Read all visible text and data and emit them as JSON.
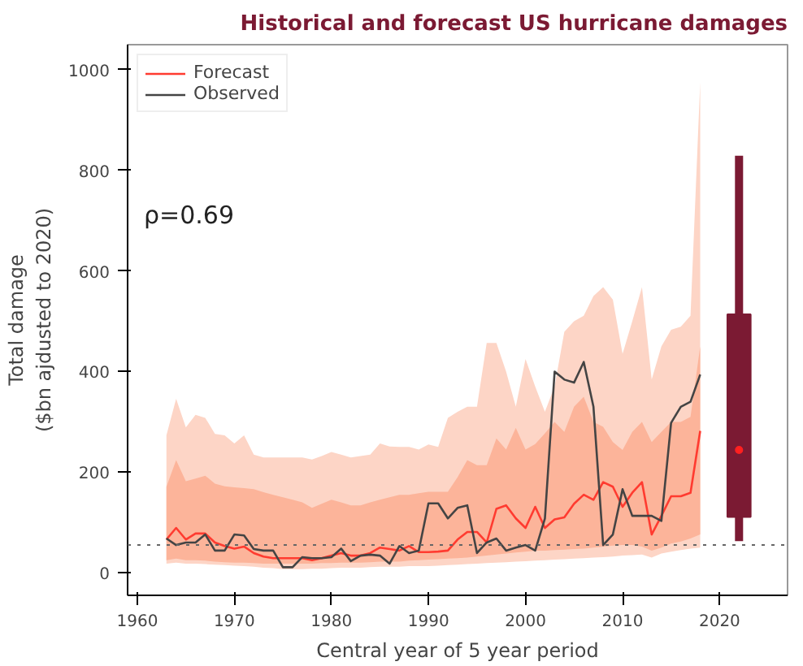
{
  "chart_data": {
    "type": "line",
    "title": "Historical and forecast US hurricane damages",
    "xlabel": "Central year of 5 year period",
    "ylabel": "Total damage\n($bn ajdusted to 2020)",
    "xlim": [
      1959,
      2027
    ],
    "ylim": [
      -45,
      1050
    ],
    "xticks": [
      1960,
      1970,
      1980,
      1990,
      2000,
      2010,
      2020
    ],
    "yticks": [
      0,
      200,
      400,
      600,
      800,
      1000
    ],
    "x": [
      1963,
      1964,
      1965,
      1966,
      1967,
      1968,
      1969,
      1970,
      1971,
      1972,
      1973,
      1974,
      1975,
      1976,
      1977,
      1978,
      1979,
      1980,
      1981,
      1982,
      1983,
      1984,
      1985,
      1986,
      1987,
      1988,
      1989,
      1990,
      1991,
      1992,
      1993,
      1994,
      1995,
      1996,
      1997,
      1998,
      1999,
      2000,
      2001,
      2002,
      2003,
      2004,
      2005,
      2006,
      2007,
      2008,
      2009,
      2010,
      2011,
      2012,
      2013,
      2014,
      2015,
      2016,
      2017,
      2018
    ],
    "series": [
      {
        "type": "line",
        "color": "#fdd5c6",
        "values": [
          null,
          null,
          null,
          null,
          null,
          null,
          null,
          null,
          null,
          null,
          null,
          null,
          null,
          null,
          null,
          null,
          null,
          null,
          null,
          null,
          null,
          null,
          null,
          null,
          null,
          null,
          null,
          null,
          null,
          null,
          null,
          null,
          null,
          null,
          null,
          null,
          null,
          null,
          null,
          null,
          null,
          null,
          null,
          null,
          null,
          null,
          null,
          null,
          null,
          null,
          null,
          null,
          null,
          null,
          null,
          null
        ],
        "upper": [
          273,
          346,
          289,
          314,
          308,
          276,
          273,
          257,
          273,
          235,
          229,
          229,
          229,
          229,
          229,
          225,
          232,
          240,
          235,
          229,
          232,
          235,
          257,
          251,
          250,
          250,
          245,
          255,
          250,
          308,
          320,
          330,
          330,
          457,
          457,
          400,
          330,
          425,
          370,
          320,
          371,
          479,
          500,
          511,
          550,
          568,
          543,
          435,
          500,
          568,
          384,
          450,
          483,
          489,
          511,
          975
        ],
        "lower": [
          18,
          20,
          18,
          18,
          17,
          16,
          15,
          14,
          13,
          12,
          10,
          9,
          7,
          7,
          7,
          8,
          8,
          9,
          10,
          10,
          10,
          11,
          12,
          12,
          12,
          13,
          13,
          13,
          14,
          15,
          16,
          17,
          18,
          19,
          20,
          21,
          22,
          23,
          24,
          25,
          26,
          27,
          28,
          29,
          30,
          31,
          32,
          34,
          35,
          36,
          30,
          38,
          42,
          45,
          48,
          50
        ]
      },
      {
        "type": "line",
        "name": "Forecast",
        "color": "#ff3b30",
        "values": [
          66,
          89,
          66,
          78,
          78,
          60,
          53,
          48,
          52,
          39,
          32,
          29,
          29,
          29,
          29,
          25,
          29,
          34,
          39,
          34,
          34,
          39,
          50,
          47,
          44,
          53,
          41,
          41,
          42,
          44,
          66,
          81,
          81,
          60,
          127,
          134,
          108,
          89,
          131,
          89,
          106,
          110,
          137,
          155,
          145,
          180,
          171,
          131,
          159,
          180,
          76,
          113,
          152,
          152,
          159,
          282
        ],
        "lower": [
          25,
          28,
          25,
          25,
          24,
          22,
          21,
          20,
          20,
          19,
          18,
          18,
          18,
          18,
          18,
          18,
          19,
          19,
          20,
          20,
          20,
          21,
          22,
          22,
          22,
          24,
          25,
          26,
          27,
          28,
          29,
          30,
          32,
          34,
          36,
          38,
          40,
          42,
          44,
          44,
          45,
          46,
          47,
          48,
          50,
          52,
          54,
          55,
          55,
          52,
          44,
          50,
          58,
          62,
          68,
          76
        ],
        "upper": [
          171,
          224,
          182,
          187,
          193,
          177,
          172,
          170,
          168,
          166,
          160,
          155,
          150,
          145,
          140,
          129,
          137,
          145,
          140,
          134,
          134,
          140,
          145,
          150,
          155,
          155,
          158,
          161,
          161,
          161,
          190,
          224,
          214,
          214,
          267,
          245,
          288,
          245,
          256,
          277,
          300,
          280,
          330,
          350,
          300,
          290,
          260,
          244,
          280,
          300,
          260,
          280,
          300,
          300,
          310,
          450
        ]
      },
      {
        "type": "line",
        "name": "Observed",
        "color": "#444444",
        "values": [
          68,
          55,
          60,
          60,
          76,
          44,
          44,
          76,
          74,
          47,
          44,
          44,
          11,
          11,
          31,
          29,
          29,
          31,
          48,
          23,
          34,
          36,
          34,
          18,
          53,
          39,
          44,
          138,
          138,
          108,
          129,
          134,
          39,
          60,
          68,
          44,
          50,
          55,
          44,
          108,
          400,
          384,
          378,
          419,
          330,
          55,
          76,
          166,
          113,
          113,
          113,
          103,
          298,
          330,
          340,
          394
        ]
      },
      {
        "type": "box",
        "color": "#7b1a33",
        "x": [
          2022
        ],
        "boxes": [
          {
            "low": 63,
            "q1": 111,
            "q3": 514,
            "high": 829,
            "mean": 244
          }
        ]
      }
    ],
    "ref_lines": [
      {
        "axis": "y",
        "value": 55,
        "color": "#666666",
        "line_style": "dotted"
      }
    ],
    "annotations": [
      "ρ=0.69"
    ],
    "legend": "top left",
    "grid": false,
    "marker": "none",
    "line_style": "solid"
  }
}
